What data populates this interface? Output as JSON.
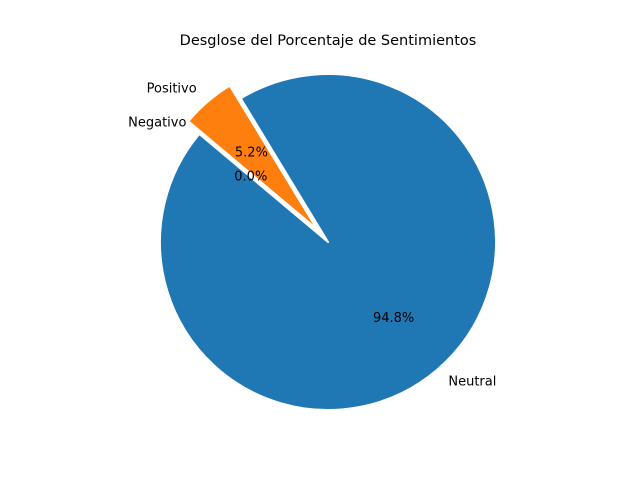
{
  "chart_data": {
    "type": "pie",
    "title": "Desglose del Porcentaje de Sentimientos",
    "slices": [
      {
        "label": "Neutral",
        "value": 94.8,
        "pct_label": "94.8%",
        "color": "#1f77b4",
        "explode": 0
      },
      {
        "label": "Positivo",
        "value": 5.2,
        "pct_label": "5.2%",
        "color": "#ff7f0e",
        "explode": 0.1
      },
      {
        "label": "Negativo",
        "value": 0.0,
        "pct_label": "0.0%",
        "color": "#2ca02c",
        "explode": 0
      }
    ],
    "start_angle": 140,
    "legend": false
  }
}
